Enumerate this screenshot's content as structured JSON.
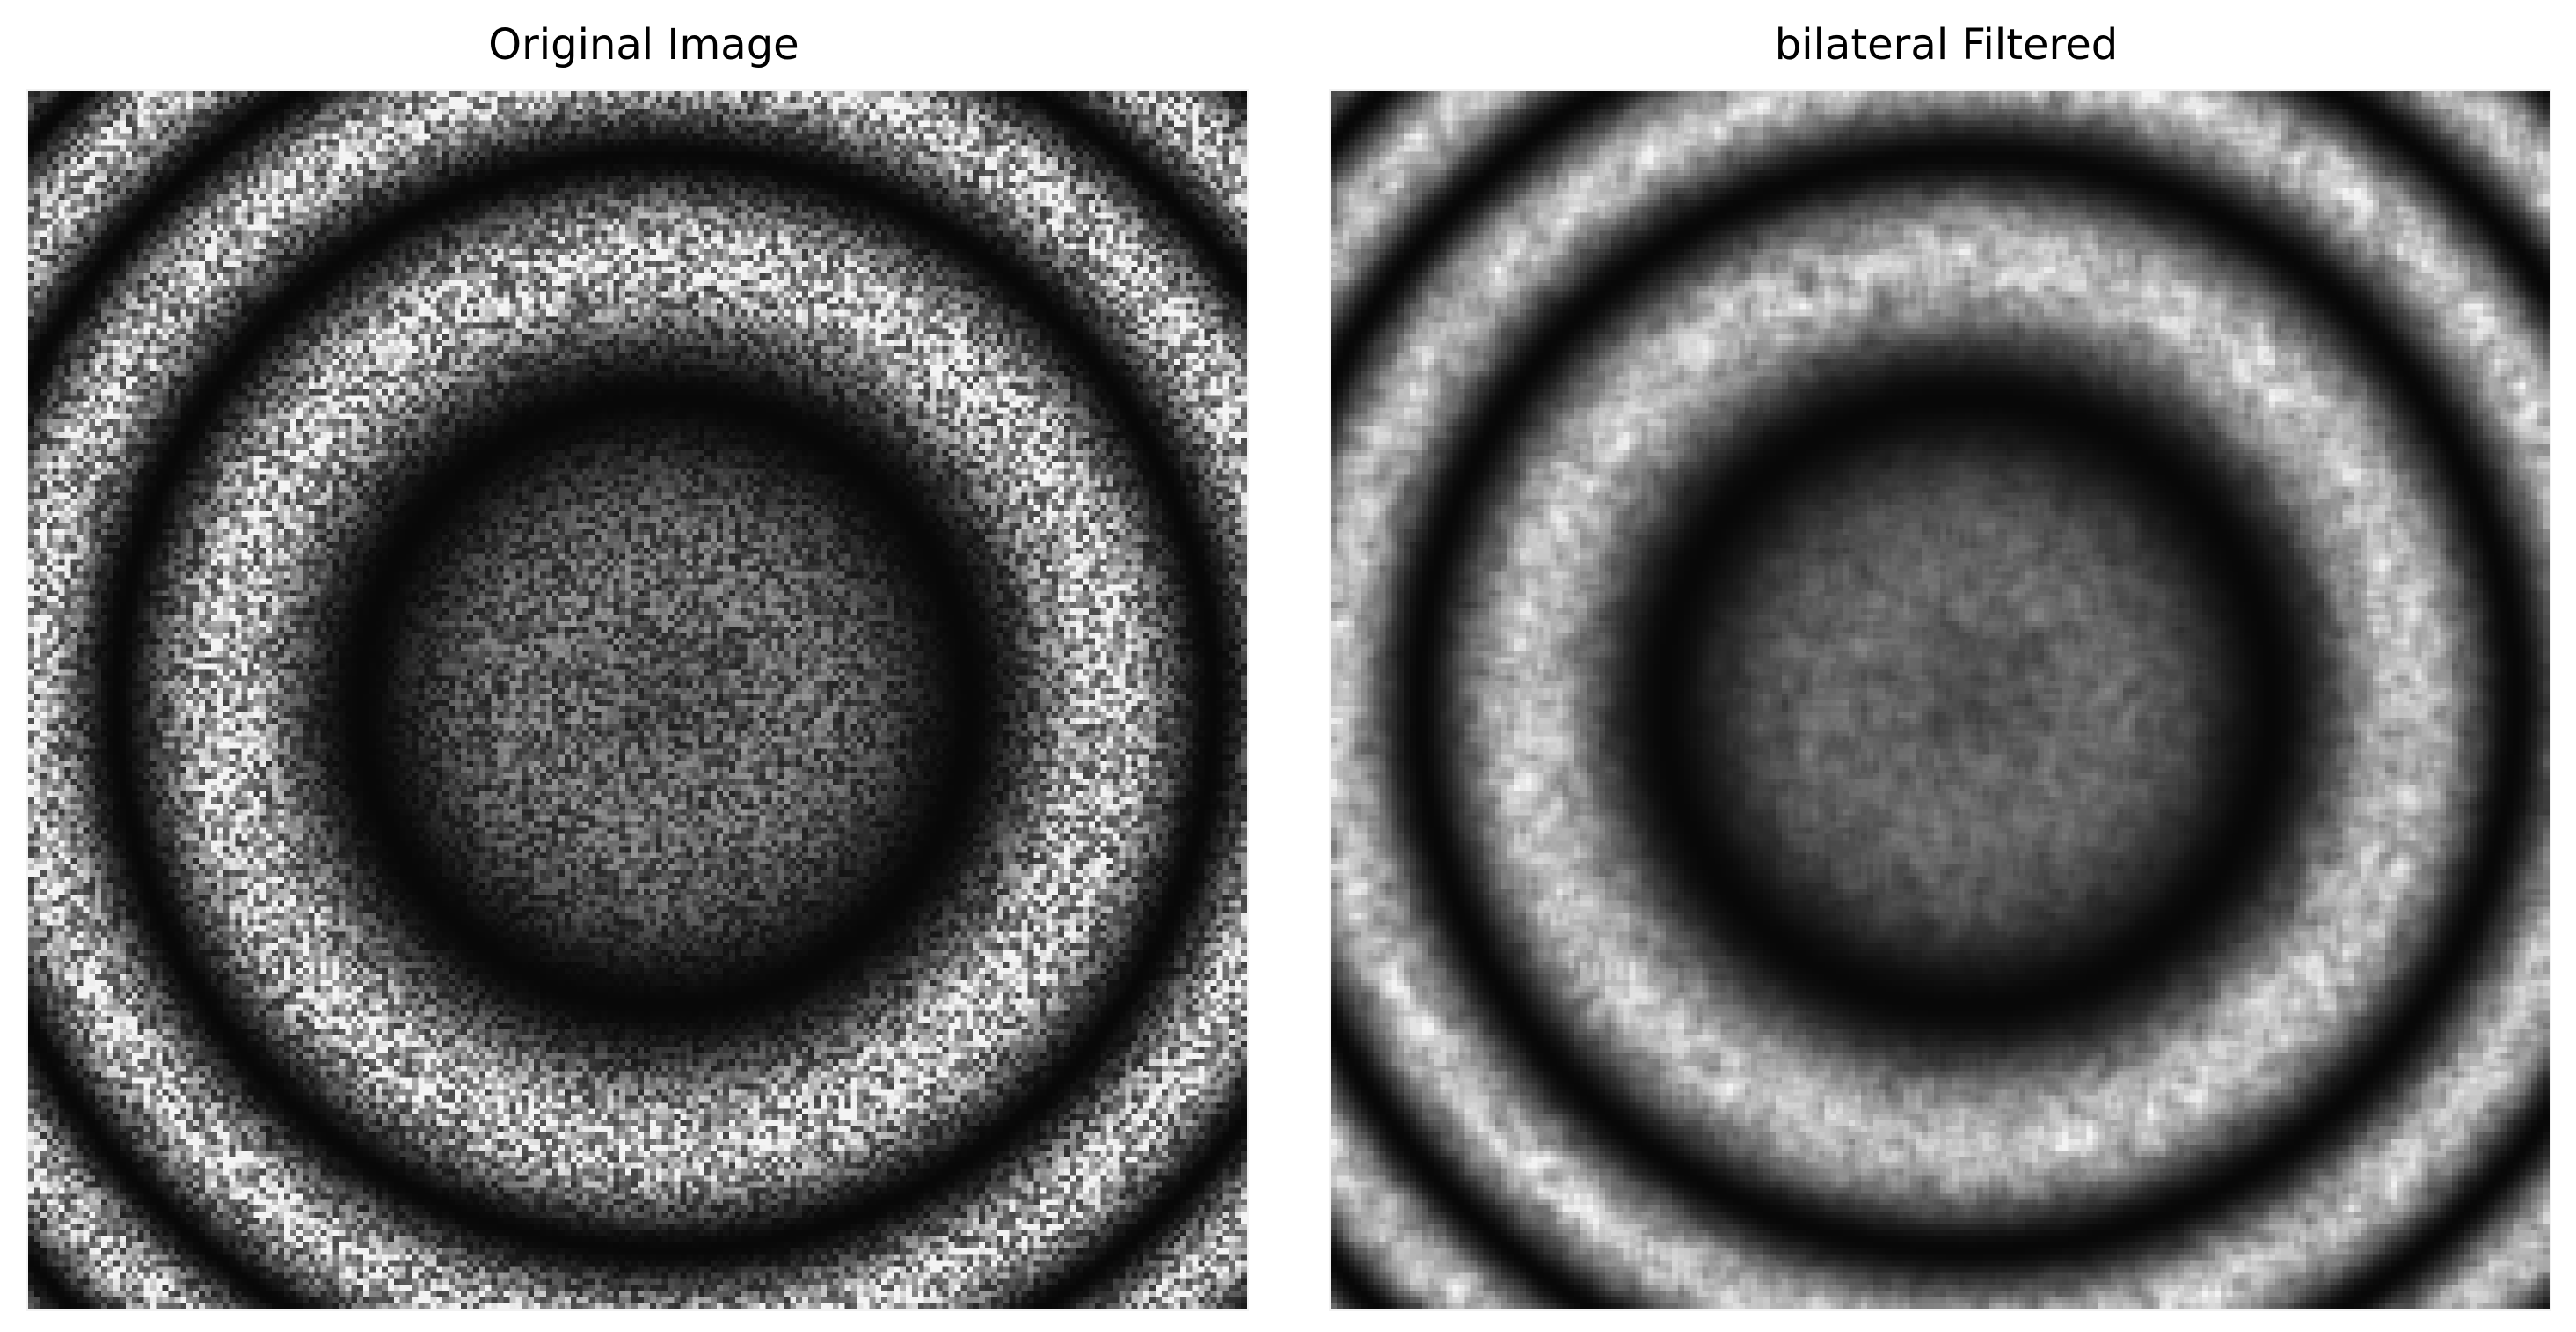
{
  "panels": [
    {
      "title": "Original Image",
      "image": {
        "description_key": "noisy-concentric-ring-pattern",
        "rings_visible": 4,
        "colormap": "gray"
      }
    },
    {
      "title": "bilateral Filtered",
      "image": {
        "description_key": "bilateral-filtered-concentric-ring-pattern",
        "rings_visible": 4,
        "colormap": "gray"
      }
    }
  ]
}
